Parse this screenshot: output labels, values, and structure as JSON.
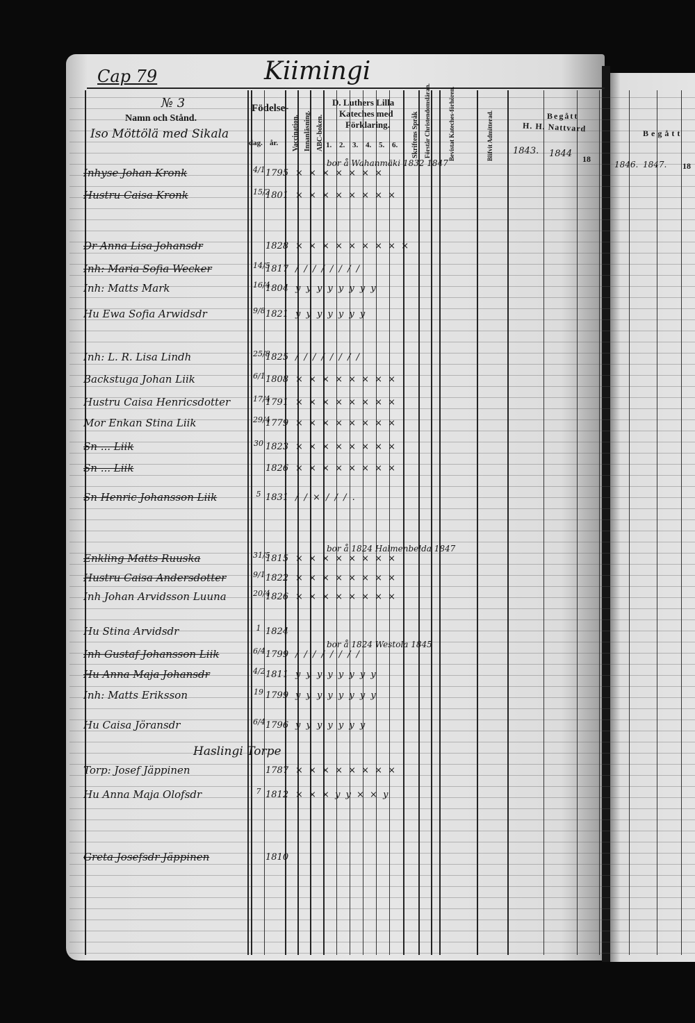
{
  "header": {
    "cap": "Cap 79",
    "parish": "Kiimingi",
    "number": "№ 3",
    "names_heading": "Namn och Stånd.",
    "village": "Iso Möttölä med Sikala",
    "birth": "Födelse-",
    "day": "dag.",
    "year": "år.",
    "vaccination": "Vaccination.",
    "reading": "Innanläsning.",
    "abc": "ABC-boken.",
    "catechism": [
      "D. Luthers Lilla",
      "Kateches med",
      "Förklaring."
    ],
    "catechism_cols": [
      "1.",
      "2.",
      "3.",
      "4.",
      "5.",
      "6."
    ],
    "scripture": "Skriftens Språk",
    "understands": "Förstår Christendomsläran.",
    "attended": "Bevistat Kateches-förhören.",
    "admitted": "Blifvit Admitterad.",
    "communion": [
      "Begått",
      "H. H. Nattvard"
    ],
    "communion_years": [
      "1843.",
      "1844",
      "18"
    ],
    "right_page_heading": "Begått",
    "right_page_years": [
      "1846.",
      "1847.",
      "18"
    ]
  },
  "section_label": "Haslingi Torpe",
  "rows": [
    {
      "name": "Inhyse Johan Kronk",
      "day": "4/1",
      "year": "1795",
      "marks": "× × × × × × ×",
      "note": "bor å Wahanmäki 1832 1847",
      "struck": true
    },
    {
      "name": "Hustru Caisa Kronk",
      "day": "15/2",
      "year": "1801",
      "marks": "× × × × × × × ×",
      "note": "",
      "struck": true
    },
    {
      "name": "Dr Anna Lisa Johansdr",
      "day": "",
      "year": "1828",
      "marks": "× × × × × × × × ×",
      "note": "",
      "struck": true
    },
    {
      "name": "Inh: Maria Sofia Wecker",
      "day": "14/5",
      "year": "1817",
      "marks": "/ / / / / / / /",
      "note": "",
      "struck": true
    },
    {
      "name": "Inh: Matts Mark",
      "day": "16/4",
      "year": "1804",
      "marks": "y y y y y y y y",
      "note": "",
      "struck": false
    },
    {
      "name": "Hu Ewa Sofia Arwidsdr",
      "day": "9/8",
      "year": "1821",
      "marks": "y y y y y y y",
      "note": "",
      "struck": false
    },
    {
      "name": "Inh: L. R. Lisa Lindh",
      "day": "25/8",
      "year": "1825",
      "marks": "/ / / / / / / /",
      "note": "",
      "struck": false
    },
    {
      "name": "Backstuga Johan Liik",
      "day": "6/1",
      "year": "1808",
      "marks": "× × × × × × × ×",
      "note": "",
      "struck": false
    },
    {
      "name": "Hustru Caisa Henricsdotter",
      "day": "17/4",
      "year": "1791",
      "marks": "× × × × × × × ×",
      "note": "",
      "struck": false
    },
    {
      "name": "Mor Enkan Stina Liik",
      "day": "29/4",
      "year": "1779",
      "marks": "× × × × × × × ×",
      "note": "",
      "struck": false
    },
    {
      "name": "Sn ... Liik",
      "day": "30",
      "year": "1823",
      "marks": "× × × × × × × ×",
      "note": "",
      "struck": true
    },
    {
      "name": "Sn ... Liik",
      "day": "",
      "year": "1826",
      "marks": "× × × × × × × ×",
      "note": "",
      "struck": true
    },
    {
      "name": "Sn Henric Johansson Liik",
      "day": "5",
      "year": "1831",
      "marks": "/ / × / / / .",
      "note": "",
      "struck": true
    },
    {
      "name": "Enkling Matts Ruuska",
      "day": "31/5",
      "year": "1815",
      "marks": "× × × × × × × ×",
      "note": "bor å 1824 Halmenbelda 1847",
      "struck": true
    },
    {
      "name": "Hustru Caisa Andersdotter",
      "day": "9/1",
      "year": "1822",
      "marks": "× × × × × × × ×",
      "note": "",
      "struck": true
    },
    {
      "name": "Inh Johan Arvidsson Luuna",
      "day": "20/4",
      "year": "1826",
      "marks": "× × × × × × × ×",
      "note": "",
      "struck": false
    },
    {
      "name": "Hu Stina Arvidsdr",
      "day": "1",
      "year": "1824",
      "marks": "",
      "note": "",
      "struck": false
    },
    {
      "name": "Inh Gustaf Johansson Liik",
      "day": "6/4",
      "year": "1799",
      "marks": "/ / / / / / / /",
      "note": "bor å 1824 Westola 1845",
      "struck": true
    },
    {
      "name": "Hu Anna Maja Johansdr",
      "day": "4/2",
      "year": "1811",
      "marks": "y y y y y y y y",
      "note": "",
      "struck": true
    },
    {
      "name": "Inh: Matts Eriksson",
      "day": "19",
      "year": "1799",
      "marks": "y y y y y y y y",
      "note": "",
      "struck": false
    },
    {
      "name": "Hu Caisa Jöransdr",
      "day": "6/4",
      "year": "1796",
      "marks": "y y y y y y y",
      "note": "",
      "struck": false
    },
    {
      "name": "Torp: Josef Jäppinen",
      "day": "",
      "year": "1787",
      "marks": "× × × × × × × ×",
      "note": "",
      "struck": false
    },
    {
      "name": "Hu Anna Maja Olofsdr",
      "day": "7",
      "year": "1812",
      "marks": "× × × y y × × y",
      "note": "",
      "struck": false
    },
    {
      "name": "Greta Josefsdr Jäppinen",
      "day": "",
      "year": "1810",
      "marks": "",
      "note": "",
      "struck": true
    }
  ]
}
